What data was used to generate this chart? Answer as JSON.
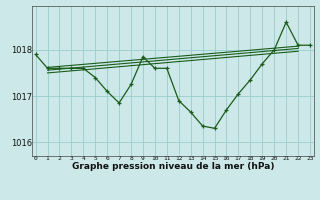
{
  "x": [
    0,
    1,
    2,
    3,
    4,
    5,
    6,
    7,
    8,
    9,
    10,
    11,
    12,
    13,
    14,
    15,
    16,
    17,
    18,
    19,
    20,
    21,
    22,
    23
  ],
  "pressure": [
    1017.9,
    1017.6,
    1017.6,
    1017.6,
    1017.6,
    1017.4,
    1017.1,
    1016.85,
    1017.25,
    1017.85,
    1017.6,
    1017.6,
    1016.9,
    1016.65,
    1016.35,
    1016.3,
    1016.7,
    1017.05,
    1017.35,
    1017.7,
    1018.0,
    1018.6,
    1018.1,
    1018.1
  ],
  "trend_lines": [
    {
      "x0": 1,
      "y0": 1017.62,
      "x1": 22,
      "y1": 1018.08
    },
    {
      "x0": 1,
      "y0": 1017.56,
      "x1": 22,
      "y1": 1018.03
    },
    {
      "x0": 1,
      "y0": 1017.5,
      "x1": 22,
      "y1": 1017.97
    }
  ],
  "bg_color": "#cce8e8",
  "line_color": "#1a5c1a",
  "grid_color": "#99cccc",
  "xlabel": "Graphe pression niveau de la mer (hPa)",
  "yticks": [
    1016,
    1017,
    1018
  ],
  "ylim": [
    1015.7,
    1018.95
  ],
  "xlim": [
    -0.3,
    23.3
  ],
  "xticks": [
    0,
    1,
    2,
    3,
    4,
    5,
    6,
    7,
    8,
    9,
    10,
    11,
    12,
    13,
    14,
    15,
    16,
    17,
    18,
    19,
    20,
    21,
    22,
    23
  ]
}
